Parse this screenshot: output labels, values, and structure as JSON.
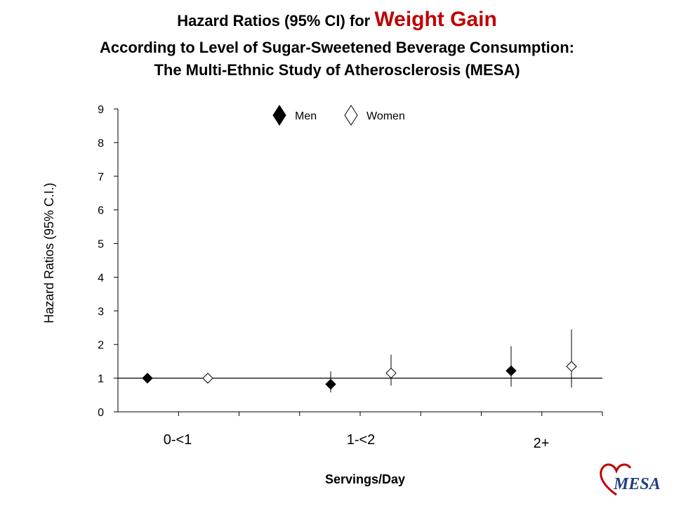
{
  "title": {
    "line1_prefix": "Hazard Ratios (95% CI) for ",
    "line1_highlight": "Weight Gain",
    "line2": "According to Level of Sugar-Sweetened Beverage Consumption:",
    "line3": "The Multi-Ethnic Study of Atherosclerosis (MESA)"
  },
  "logo_text": "MESA",
  "colors": {
    "highlight": "#c00000",
    "marker_fill": "#000000",
    "marker_open": "#ffffff",
    "axis": "#000000"
  },
  "chart_data": {
    "type": "scatter",
    "xlabel": "Servings/Day",
    "ylabel": "Hazard Ratios (95% C.I.)",
    "ylim": [
      0,
      9
    ],
    "yticks": [
      "0",
      "1",
      "2",
      "3",
      "4",
      "5",
      "6",
      "7",
      "8",
      "9"
    ],
    "reference_line": 1,
    "categories": [
      "0-<1",
      "1-<2",
      "2+"
    ],
    "legend": {
      "placement": "top-center"
    },
    "grid": false,
    "series": [
      {
        "name": "Men",
        "marker": "filled-diamond",
        "points": [
          {
            "category": "0-<1",
            "hr": 1.0,
            "ci": null
          },
          {
            "category": "1-<2",
            "hr": 0.82,
            "ci": [
              0.58,
              1.2
            ]
          },
          {
            "category": "2+",
            "hr": 1.22,
            "ci": [
              0.75,
              1.95
            ]
          }
        ]
      },
      {
        "name": "Women",
        "marker": "open-diamond",
        "points": [
          {
            "category": "0-<1",
            "hr": 1.0,
            "ci": null
          },
          {
            "category": "1-<2",
            "hr": 1.15,
            "ci": [
              0.78,
              1.7
            ]
          },
          {
            "category": "2+",
            "hr": 1.35,
            "ci": [
              0.72,
              2.45
            ]
          }
        ]
      }
    ]
  }
}
